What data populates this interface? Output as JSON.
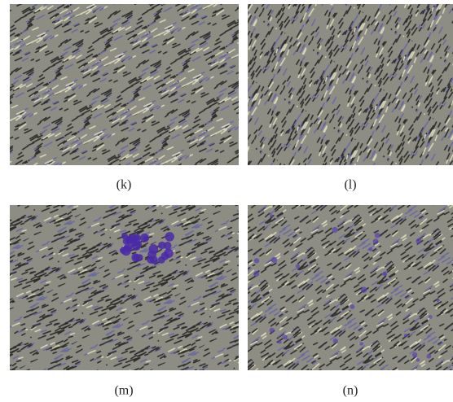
{
  "panels": [
    {
      "label": "(k)"
    },
    {
      "label": "(l)"
    },
    {
      "label": "(m)"
    },
    {
      "label": "(n)"
    }
  ]
}
